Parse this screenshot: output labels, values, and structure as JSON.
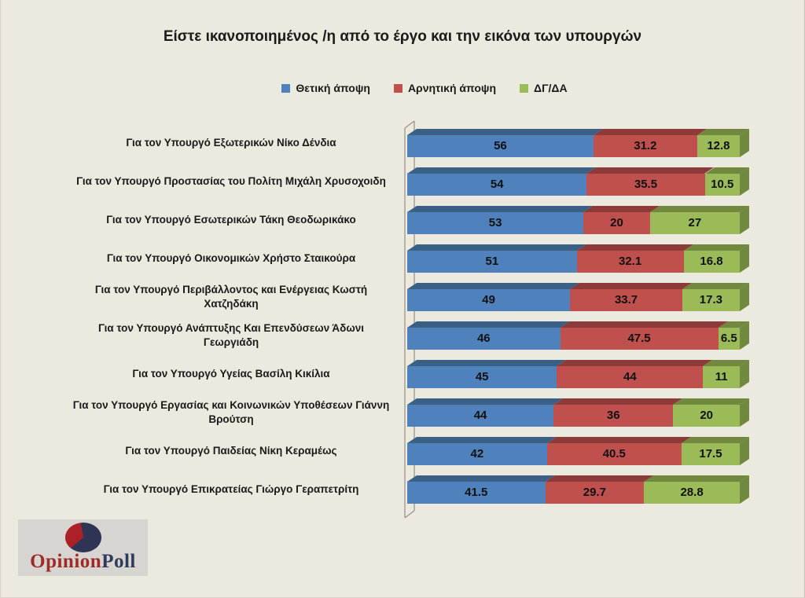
{
  "title": "Είστε ικανοποιημένος /η από το έργο και την εικόνα των υπουργών",
  "colors": {
    "background": "#ECE9DF",
    "positive": "#4F81BD",
    "positive_dark": "#3A6086",
    "negative": "#C0504D",
    "negative_dark": "#8C3B38",
    "dk_da": "#9BBB59",
    "dk_da_dark": "#71883F",
    "wall_line": "#9A9488"
  },
  "chart_data": {
    "type": "bar",
    "orientation": "horizontal",
    "stacked": true,
    "effect": "3d",
    "grid": false,
    "legend_position": "top",
    "xlim": [
      0,
      100
    ],
    "categories": [
      "Για τον Υπουργό Εξωτερικών Νίκο Δένδια",
      "Για τον Υπουργό Προστασίας του Πολίτη Μιχάλη Χρυσοχοιδη",
      "Για τον Υπουργό Εσωτερικών Τάκη Θεοδωρικάκο",
      "Για τον Υπουργό Οικονομικών Χρήστο Σταικούρα",
      "Για τον Υπουργό  Περιβάλλοντος και Ενέργειας Κωστή\nΧατζηδάκη",
      "Για τον Υπουργό Ανάπτυξης Και Επενδύσεων Άδωνι\nΓεωργιάδη",
      "Για τον Υπουργό Υγείας Βασίλη Κικίλια",
      "Για τον Υπουργό Εργασίας και Κοινωνικών Υποθέσεων Γιάννη\nΒρούτση",
      "Για τον Υπουργό Παιδείας Νίκη Κεραμέως",
      "Για τον Υπουργό Επικρατείας Γιώργο Γεραπετρίτη"
    ],
    "series": [
      {
        "name": "Θετική άποψη",
        "color": "#4F81BD",
        "dark_color": "#3A6086",
        "values": [
          56,
          54,
          53,
          51,
          49,
          46,
          45,
          44,
          42,
          41.5
        ]
      },
      {
        "name": "Αρνητική άποψη",
        "color": "#C0504D",
        "dark_color": "#8C3B38",
        "values": [
          31.2,
          35.5,
          20,
          32.1,
          33.7,
          47.5,
          44,
          36,
          40.5,
          29.7
        ]
      },
      {
        "name": "ΔΓ/ΔΑ",
        "color": "#9BBB59",
        "dark_color": "#71883F",
        "values": [
          12.8,
          10.5,
          27,
          16.8,
          17.3,
          6.5,
          11,
          20,
          17.5,
          28.8
        ]
      }
    ]
  },
  "logo": {
    "part1": "Opinion",
    "part2": "Poll",
    "part1_color": "#9E2B25",
    "part2_color": "#2E3A5C",
    "pie_main": "#2F3454",
    "pie_wedge": "#AC2127",
    "box_bg": "#D7D4D1"
  }
}
